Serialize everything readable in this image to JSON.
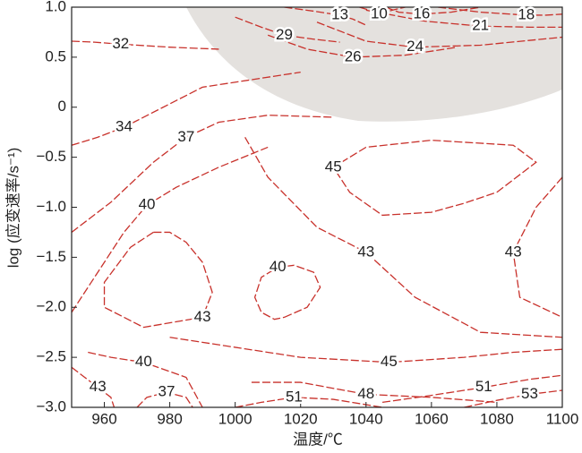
{
  "chart_data": {
    "type": "contour",
    "xlabel": "温度/℃",
    "ylabel": "log (应变速率/s⁻¹)",
    "xlim": [
      950,
      1100
    ],
    "xticks": [
      960,
      980,
      1000,
      1020,
      1040,
      1060,
      1080,
      1100
    ],
    "ylim": [
      -3,
      1
    ],
    "yticks": [
      {
        "value": -3,
        "label": "−3.0"
      },
      {
        "value": -2.5,
        "label": "−2.5"
      },
      {
        "value": -2,
        "label": "−2.0"
      },
      {
        "value": -1.5,
        "label": "−1.5"
      },
      {
        "value": -1,
        "label": "−1.0"
      },
      {
        "value": -0.5,
        "label": "−0.5"
      },
      0,
      {
        "value": 0.5,
        "label": "0.5"
      },
      {
        "value": 1,
        "label": "1.0"
      }
    ],
    "color": "#c8312b",
    "line_style": "dashed",
    "contours": [
      {
        "level": 32,
        "x": [
          950,
          957,
          965,
          980,
          995
        ],
        "y": [
          0.66,
          0.65,
          0.63,
          0.6,
          0.58
        ]
      },
      {
        "level": 29,
        "x": [
          1000,
          1008,
          1015,
          1024,
          1032
        ],
        "y": [
          0.9,
          0.8,
          0.72,
          0.68,
          0.65
        ]
      },
      {
        "level": 26,
        "x": [
          1010,
          1022,
          1036,
          1052,
          1068
        ],
        "y": [
          0.72,
          0.58,
          0.5,
          0.52,
          0.6
        ]
      },
      {
        "level": 24,
        "x": [
          1025,
          1040,
          1055,
          1075,
          1100
        ],
        "y": [
          0.85,
          0.66,
          0.6,
          0.62,
          0.7
        ]
      },
      {
        "level": 21,
        "x": [
          1040,
          1058,
          1075,
          1090,
          1100
        ],
        "y": [
          0.97,
          0.86,
          0.81,
          0.8,
          0.8
        ]
      },
      {
        "level": 18,
        "x": [
          1062,
          1075,
          1089,
          1095,
          1100
        ],
        "y": [
          1.0,
          0.95,
          0.92,
          0.92,
          0.93
        ]
      },
      {
        "level": 13,
        "x": [
          1015,
          1024,
          1032,
          1036,
          1040
        ],
        "y": [
          1.0,
          0.96,
          0.92,
          0.88,
          0.82
        ]
      },
      {
        "level": 10,
        "x": [
          1038,
          1041,
          1044,
          1048,
          1052
        ],
        "y": [
          1.0,
          0.97,
          0.93,
          0.97,
          1.0
        ]
      },
      {
        "level": 16,
        "x": [
          1046,
          1050,
          1057,
          1066,
          1075
        ],
        "y": [
          1.0,
          0.95,
          0.93,
          0.95,
          1.0
        ]
      },
      {
        "level": 34,
        "x": [
          950,
          958,
          966,
          990,
          1020
        ],
        "y": [
          -0.38,
          -0.3,
          -0.2,
          0.2,
          0.35
        ]
      },
      {
        "level": 37,
        "x": [
          950,
          962,
          975,
          985,
          995,
          1010,
          1030
        ],
        "y": [
          -1.25,
          -0.95,
          -0.55,
          -0.3,
          -0.15,
          -0.08,
          -0.1
        ]
      },
      {
        "level": 40,
        "x": [
          950,
          958,
          966,
          973,
          982,
          995,
          1010
        ],
        "y": [
          -2.05,
          -1.65,
          -1.25,
          -0.98,
          -0.8,
          -0.6,
          -0.4
        ]
      },
      {
        "level": 45,
        "x": [
          1080,
          1092,
          1085,
          1060,
          1040,
          1030,
          1035,
          1045,
          1060,
          1070,
          1080
        ],
        "y": [
          -0.85,
          -0.55,
          -0.38,
          -0.33,
          -0.4,
          -0.6,
          -0.85,
          -1.08,
          -1.05,
          -0.96,
          -0.85
        ]
      },
      {
        "level": 43,
        "x": [
          1003,
          1010,
          1025,
          1040,
          1055,
          1075,
          1100
        ],
        "y": [
          -0.3,
          -0.7,
          -1.2,
          -1.45,
          -1.9,
          -2.25,
          -2.3
        ]
      },
      {
        "level": 43,
        "x": [
          1100,
          1092,
          1085,
          1087,
          1100
        ],
        "y": [
          -0.7,
          -1.0,
          -1.45,
          -1.9,
          -2.1
        ]
      },
      {
        "level": 40,
        "x": [
          1015,
          1022,
          1026,
          1024,
          1018,
          1013,
          1008,
          1006,
          1008,
          1012,
          1015
        ],
        "y": [
          -2.1,
          -2.0,
          -1.8,
          -1.65,
          -1.58,
          -1.6,
          -1.7,
          -1.9,
          -2.05,
          -2.12,
          -2.1
        ]
      },
      {
        "level": 43,
        "x": [
          975,
          968,
          960,
          960,
          972,
          990,
          993,
          990,
          985,
          980,
          975
        ],
        "y": [
          -1.25,
          -1.4,
          -1.75,
          -2.0,
          -2.2,
          -2.1,
          -1.85,
          -1.55,
          -1.35,
          -1.25,
          -1.25
        ]
      },
      {
        "level": 45,
        "x": [
          980,
          1000,
          1020,
          1047,
          1070,
          1085,
          1100
        ],
        "y": [
          -2.3,
          -2.4,
          -2.5,
          -2.55,
          -2.5,
          -2.45,
          -2.42
        ]
      },
      {
        "level": 40,
        "x": [
          955,
          962,
          972,
          985,
          990
        ],
        "y": [
          -2.45,
          -2.5,
          -2.55,
          -2.7,
          -3.0
        ]
      },
      {
        "level": 43,
        "x": [
          950,
          954,
          958,
          962,
          963
        ],
        "y": [
          -2.6,
          -2.7,
          -2.8,
          -2.9,
          -3.0
        ]
      },
      {
        "level": 37,
        "x": [
          970,
          973,
          979,
          985,
          987
        ],
        "y": [
          -3.0,
          -2.9,
          -2.85,
          -2.9,
          -3.0
        ]
      },
      {
        "level": 51,
        "x": [
          1000,
          1008,
          1018,
          1030,
          1045
        ],
        "y": [
          -3.0,
          -2.95,
          -2.9,
          -2.92,
          -3.0
        ]
      },
      {
        "level": 48,
        "x": [
          1005,
          1020,
          1040,
          1060,
          1080
        ],
        "y": [
          -2.75,
          -2.75,
          -2.87,
          -2.9,
          -2.95
        ]
      },
      {
        "level": 51,
        "x": [
          1045,
          1060,
          1076,
          1090,
          1100
        ],
        "y": [
          -2.95,
          -2.88,
          -2.8,
          -2.72,
          -2.68
        ]
      },
      {
        "level": 53,
        "x": [
          1070,
          1080,
          1090,
          1095,
          1100
        ],
        "y": [
          -3.0,
          -2.93,
          -2.87,
          -2.85,
          -2.83
        ]
      }
    ]
  }
}
